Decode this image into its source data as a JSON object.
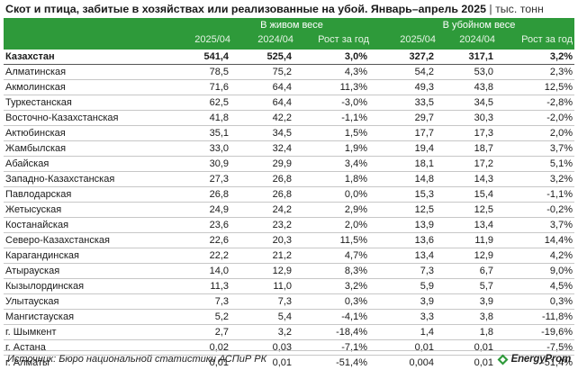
{
  "title": {
    "bold": "Скот и птица, забитые в хозяйствах или реализованные на убой. Январь–апрель 2025",
    "unit": " | тыс. тонн"
  },
  "groups": {
    "live": "В живом весе",
    "slaughter": "В убойном весе"
  },
  "columns": [
    "2025/04",
    "2024/04",
    "Рост за год",
    "2025/04",
    "2024/04",
    "Рост за год"
  ],
  "rows": [
    [
      "Казахстан",
      "541,4",
      "525,4",
      "3,0%",
      "327,2",
      "317,1",
      "3,2%"
    ],
    [
      "Алматинская",
      "78,5",
      "75,2",
      "4,3%",
      "54,2",
      "53,0",
      "2,3%"
    ],
    [
      "Акмолинская",
      "71,6",
      "64,4",
      "11,3%",
      "49,3",
      "43,8",
      "12,5%"
    ],
    [
      "Туркестанская",
      "62,5",
      "64,4",
      "-3,0%",
      "33,5",
      "34,5",
      "-2,8%"
    ],
    [
      "Восточно-Казахстанская",
      "41,8",
      "42,2",
      "-1,1%",
      "29,7",
      "30,3",
      "-2,0%"
    ],
    [
      "Актюбинская",
      "35,1",
      "34,5",
      "1,5%",
      "17,7",
      "17,3",
      "2,0%"
    ],
    [
      "Жамбылская",
      "33,0",
      "32,4",
      "1,9%",
      "19,4",
      "18,7",
      "3,7%"
    ],
    [
      "Абайская",
      "30,9",
      "29,9",
      "3,4%",
      "18,1",
      "17,2",
      "5,1%"
    ],
    [
      "Западно-Казахстанская",
      "27,3",
      "26,8",
      "1,8%",
      "14,8",
      "14,3",
      "3,2%"
    ],
    [
      "Павлодарская",
      "26,8",
      "26,8",
      "0,0%",
      "15,3",
      "15,4",
      "-1,1%"
    ],
    [
      "Жетысуская",
      "24,9",
      "24,2",
      "2,9%",
      "12,5",
      "12,5",
      "-0,2%"
    ],
    [
      "Костанайская",
      "23,6",
      "23,2",
      "2,0%",
      "13,9",
      "13,4",
      "3,7%"
    ],
    [
      "Северо-Казахстанская",
      "22,6",
      "20,3",
      "11,5%",
      "13,6",
      "11,9",
      "14,4%"
    ],
    [
      "Карагандинская",
      "22,2",
      "21,2",
      "4,7%",
      "13,4",
      "12,9",
      "4,2%"
    ],
    [
      "Атырауская",
      "14,0",
      "12,9",
      "8,3%",
      "7,3",
      "6,7",
      "9,0%"
    ],
    [
      "Кызылординская",
      "11,3",
      "11,0",
      "3,2%",
      "5,9",
      "5,7",
      "4,5%"
    ],
    [
      "Улытауская",
      "7,3",
      "7,3",
      "0,3%",
      "3,9",
      "3,9",
      "0,3%"
    ],
    [
      "Мангистауская",
      "5,2",
      "5,4",
      "-4,1%",
      "3,3",
      "3,8",
      "-11,8%"
    ],
    [
      "г. Шымкент",
      "2,7",
      "3,2",
      "-18,4%",
      "1,4",
      "1,8",
      "-19,6%"
    ],
    [
      "г. Астана",
      "0,02",
      "0,03",
      "-7,1%",
      "0,01",
      "0,01",
      "-7,5%"
    ],
    [
      "г. Алматы",
      "0,01",
      "0,01",
      "-51,4%",
      "0,004",
      "0,01",
      "-51,4%"
    ]
  ],
  "footer": {
    "source": "Источник: Бюро национальной статистики АСПиР РК",
    "logo": "EnergyProm"
  },
  "colors": {
    "header_bg": "#2e9a3a",
    "header_text": "#ffffff"
  }
}
